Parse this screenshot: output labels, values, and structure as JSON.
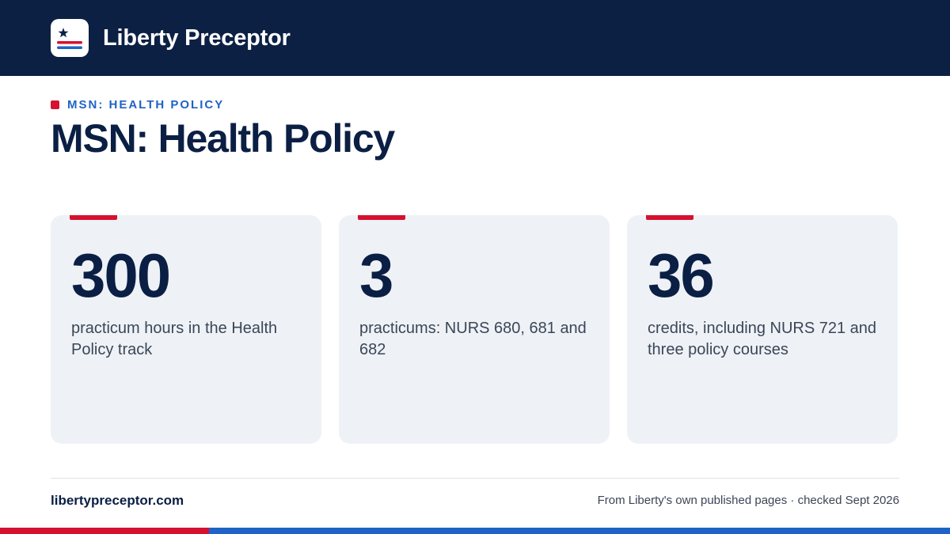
{
  "header": {
    "brand": "Liberty Preceptor",
    "logo_icon": "star-stripes-logo-icon"
  },
  "eyebrow": "MSN: HEALTH POLICY",
  "title": "MSN: Health Policy",
  "stats": [
    {
      "number": "300",
      "text": "practicum hours in the Health Policy track"
    },
    {
      "number": "3",
      "text": "practicums: NURS 680, 681 and 682"
    },
    {
      "number": "36",
      "text": "credits, including NURS 721 and three policy courses"
    }
  ],
  "footer": {
    "site": "libertypreceptor.com",
    "note": "From Liberty's own published pages · checked Sept 2026"
  },
  "colors": {
    "navy": "#0c2044",
    "red": "#d5112f",
    "blue": "#1f63c6",
    "card_bg": "#eef2f7"
  }
}
